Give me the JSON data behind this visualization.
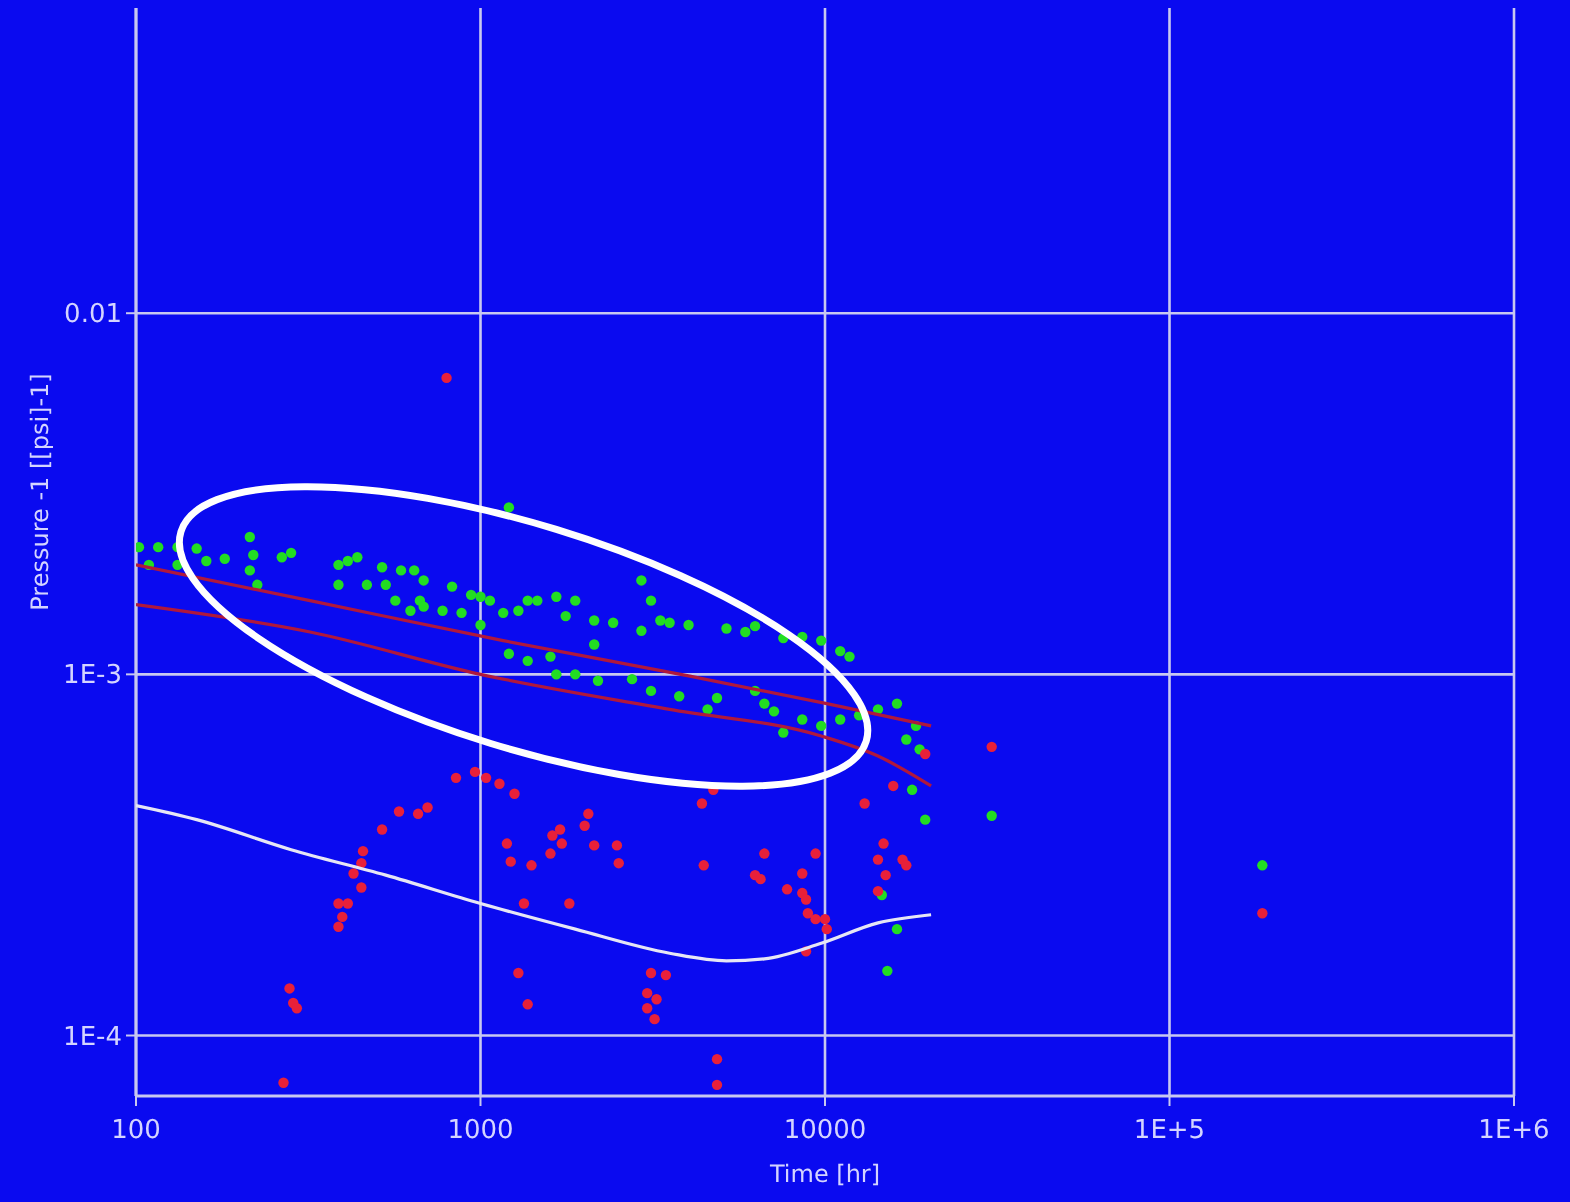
{
  "chart_data": {
    "type": "scatter",
    "xlabel": "Time [hr]",
    "ylabel": "Pressure -1 [[psi]-1]",
    "log": "xy",
    "grid": true,
    "xlim": [
      100,
      1000000
    ],
    "ylim": [
      6.8e-05,
      0.07
    ],
    "xticks": [
      100,
      1000,
      10000,
      {
        "value": 100000,
        "label": "1E+5"
      },
      {
        "value": 1000000,
        "label": "1E+6"
      }
    ],
    "yticks": [
      {
        "value": 0.0001,
        "label": "1E-4"
      },
      {
        "value": 0.001,
        "label": "1E-3"
      },
      0.01
    ],
    "series": [
      {
        "marker": "circle",
        "color": "#22dd22",
        "x": [
          102,
          116,
          132,
          150,
          109,
          132,
          160,
          181,
          214,
          219,
          214,
          265,
          282,
          225,
          387,
          412,
          439,
          387,
          468,
          531,
          518,
          588,
          642,
          684,
          667,
          827,
          939,
          1000,
          1065,
          566,
          626,
          684,
          776,
          881,
          1000,
          1164,
          1288,
          1209,
          1371,
          1462,
          1660,
          1884,
          1767,
          2138,
          2427,
          2931,
          3327,
          3540,
          4018,
          5176,
          5871,
          6266,
          7568,
          8590,
          9750,
          11070,
          11780,
          1209,
          1371,
          1596,
          1884,
          2193,
          2754,
          3126,
          2138,
          1660,
          3774,
          4561,
          4859,
          6266,
          6668,
          7112,
          8590,
          9750,
          11070,
          7568,
          12560,
          14250,
          16180,
          17220,
          18370,
          18820,
          17900,
          19540,
          14620,
          15170,
          16180,
          30470,
          186000,
          2931,
          3126
        ],
        "values": [
          0.00225,
          0.00225,
          0.00225,
          0.00223,
          0.00201,
          0.00201,
          0.00206,
          0.00209,
          0.0024,
          0.00214,
          0.00194,
          0.00211,
          0.00217,
          0.00177,
          0.00201,
          0.00206,
          0.00211,
          0.00177,
          0.00177,
          0.00177,
          0.00198,
          0.00194,
          0.00194,
          0.00182,
          0.0016,
          0.00175,
          0.00166,
          0.00164,
          0.0016,
          0.0016,
          0.0015,
          0.00154,
          0.0015,
          0.00148,
          0.00137,
          0.00148,
          0.0015,
          0.0029,
          0.0016,
          0.0016,
          0.00164,
          0.0016,
          0.00145,
          0.00141,
          0.00139,
          0.00132,
          0.00141,
          0.00139,
          0.00137,
          0.00134,
          0.00131,
          0.00136,
          0.00126,
          0.00127,
          0.00124,
          0.00116,
          0.00112,
          0.00114,
          0.00109,
          0.00112,
          0.001,
          0.00096,
          0.00097,
          0.0009,
          0.00121,
          0.001,
          0.00087,
          0.0008,
          0.00086,
          0.0009,
          0.00083,
          0.00079,
          0.00075,
          0.00072,
          0.00075,
          0.00069,
          0.00077,
          0.0008,
          0.00083,
          0.00066,
          0.00072,
          0.00062,
          0.000479,
          0.000396,
          0.000245,
          0.000151,
          0.000197,
          0.000406,
          0.000296,
          0.00182,
          0.0016
        ]
      },
      {
        "marker": "circle",
        "color": "#e8203a",
        "x": [
          797,
          849,
          964,
          1038,
          1135,
          1255,
          580,
          659,
          702,
          518,
          456,
          451,
          428,
          451,
          387,
          412,
          397,
          387,
          279,
          286,
          293,
          268,
          1193,
          1224,
          1337,
          1288,
          1371,
          1406,
          1811,
          1596,
          1617,
          1702,
          1722,
          2056,
          2006,
          2138,
          2489,
          2519,
          4393,
          4742,
          4446,
          3126,
          3453,
          3047,
          3047,
          3244,
          3201,
          4859,
          4859,
          6668,
          6266,
          6501,
          7762,
          8590,
          8590,
          8810,
          8920,
          9390,
          10000,
          10120,
          9390,
          8810,
          15780,
          13030,
          14790,
          14250,
          16790,
          17220,
          15000,
          14250,
          19540,
          30470,
          186000
        ],
        "values": [
          0.00662,
          0.000517,
          0.000537,
          0.000517,
          0.000498,
          0.000467,
          0.000417,
          0.000411,
          0.000428,
          0.000372,
          0.000324,
          0.0003,
          0.000281,
          0.000257,
          0.000232,
          0.000232,
          0.000213,
          0.0002,
          0.000135,
          0.000123,
          0.000119,
          7.4e-05,
          0.00034,
          0.000303,
          0.000232,
          0.000149,
          0.000122,
          0.000296,
          0.000232,
          0.000319,
          0.000358,
          0.000372,
          0.00034,
          0.000411,
          0.000381,
          0.000336,
          0.000336,
          0.0003,
          0.000439,
          0.000479,
          0.000296,
          0.000149,
          0.000147,
          0.000131,
          0.000119,
          0.000126,
          0.000111,
          8.6e-05,
          7.3e-05,
          0.000319,
          0.000278,
          0.000271,
          0.000254,
          0.000281,
          0.000248,
          0.000238,
          0.000218,
          0.00021,
          0.00021,
          0.000197,
          0.000319,
          0.000171,
          0.000491,
          0.000439,
          0.00034,
          0.000307,
          0.000307,
          0.000296,
          0.000278,
          0.000251,
          0.000602,
          0.00063,
          0.000218
        ]
      },
      {
        "type": "line",
        "color": "#b0183c",
        "x": [
          100,
          320,
          1164,
          4018,
          10120,
          20320
        ],
        "values": [
          0.00201,
          0.0016,
          0.00124,
          0.00099,
          0.00083,
          0.00072
        ]
      },
      {
        "type": "line",
        "color": "#b0183c",
        "x": [
          100,
          320,
          1000,
          3540,
          9750,
          14250,
          20320
        ],
        "values": [
          0.00156,
          0.00131,
          0.001,
          0.0008,
          0.000675,
          0.000594,
          0.000491
        ]
      },
      {
        "type": "line",
        "color": "#e6e6f5",
        "x": [
          100,
          150,
          282,
          531,
          1000,
          1884,
          3540,
          5176,
          6668,
          9750,
          14250,
          20320
        ],
        "values": [
          0.000433,
          0.000396,
          0.000327,
          0.000278,
          0.000232,
          0.000197,
          0.000169,
          0.000161,
          0.000163,
          0.00018,
          0.000205,
          0.000216
        ]
      }
    ]
  }
}
